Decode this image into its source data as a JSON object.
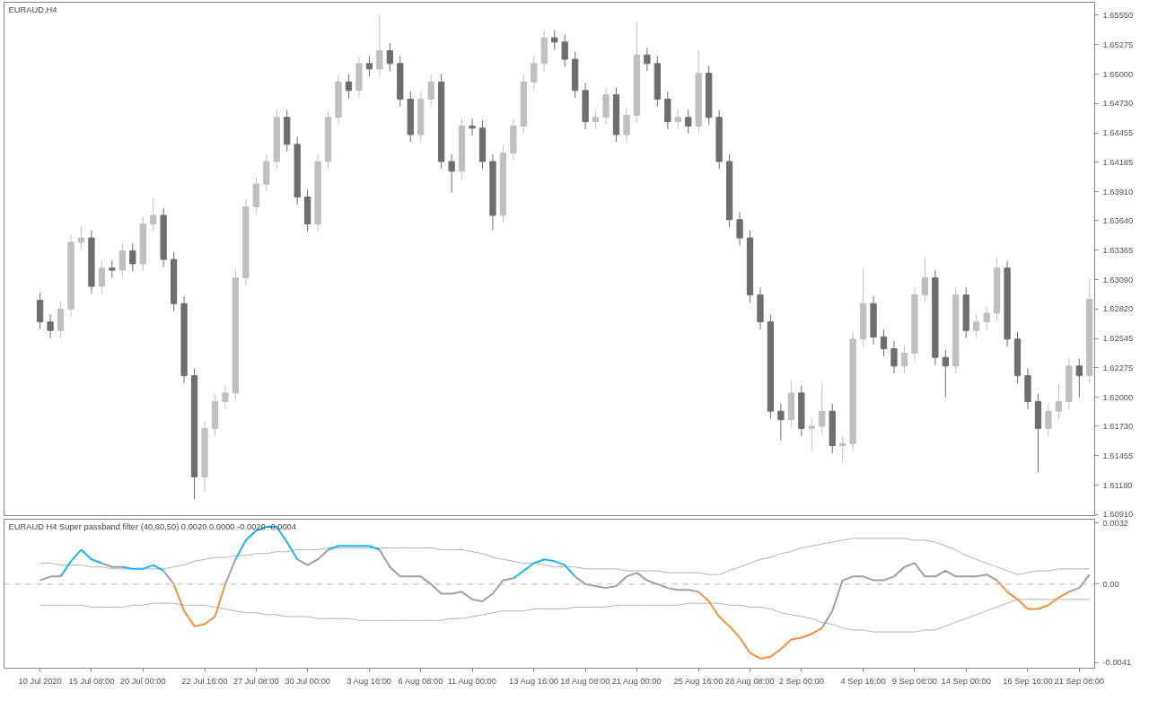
{
  "chart_data": [
    {
      "type": "candlestick",
      "title": "EURAUD,H4",
      "tick_labels": "y",
      "categories": [
        null,
        null,
        null,
        null,
        null,
        null,
        null,
        null,
        null,
        null,
        null,
        null,
        null,
        null,
        null,
        null,
        null,
        null,
        null,
        null,
        null,
        null,
        null,
        null,
        null,
        null,
        null,
        null,
        null,
        null,
        null,
        null,
        null,
        null,
        null,
        null,
        null,
        null,
        null,
        null,
        null,
        null,
        null,
        null,
        null,
        null,
        null,
        null,
        null,
        null,
        null,
        null,
        null,
        null,
        null,
        null,
        null,
        null,
        null,
        null,
        null,
        null,
        null,
        null,
        null,
        null,
        null,
        null,
        null,
        null,
        null,
        null,
        null,
        null,
        null,
        null,
        null,
        null,
        null,
        null,
        null,
        null,
        null,
        null,
        null,
        null,
        null,
        null,
        null,
        null,
        null,
        null,
        null,
        null,
        null,
        null,
        null,
        null,
        null,
        null,
        null,
        null,
        null
      ],
      "colors": [
        "#6e6e6e",
        "#6e6e6e",
        "#c0c0c0",
        "#c0c0c0",
        "#c0c0c0",
        "#6e6e6e",
        "#c0c0c0",
        "#6e6e6e",
        "#c0c0c0",
        "#6e6e6e",
        "#c0c0c0",
        "#c0c0c0",
        "#6e6e6e",
        "#6e6e6e",
        "#6e6e6e",
        "#6e6e6e",
        "#c0c0c0",
        "#c0c0c0",
        "#c0c0c0",
        "#c0c0c0",
        "#c0c0c0",
        "#c0c0c0",
        "#c0c0c0",
        "#c0c0c0",
        "#6e6e6e",
        "#6e6e6e",
        "#6e6e6e",
        "#c0c0c0",
        "#c0c0c0",
        "#c0c0c0",
        "#6e6e6e",
        "#c0c0c0",
        "#6e6e6e",
        "#c0c0c0",
        "#6e6e6e",
        "#6e6e6e",
        "#6e6e6e",
        "#c0c0c0",
        "#c0c0c0",
        "#6e6e6e",
        "#6e6e6e",
        "#c0c0c0",
        "#6e6e6e",
        "#6e6e6e",
        "#6e6e6e",
        "#c0c0c0",
        "#c0c0c0",
        "#c0c0c0",
        "#c0c0c0",
        "#c0c0c0",
        "#6e6e6e",
        "#6e6e6e",
        "#6e6e6e",
        "#6e6e6e",
        "#c0c0c0",
        "#c0c0c0",
        "#6e6e6e",
        "#c0c0c0",
        "#c0c0c0",
        "#6e6e6e",
        "#6e6e6e",
        "#6e6e6e",
        "#c0c0c0",
        "#6e6e6e",
        "#c0c0c0",
        "#6e6e6e",
        "#6e6e6e",
        "#6e6e6e",
        "#6e6e6e",
        "#6e6e6e",
        "#6e6e6e",
        "#6e6e6e",
        "#6e6e6e",
        "#c0c0c0",
        "#6e6e6e",
        "#c0c0c0",
        "#c0c0c0",
        "#6e6e6e",
        "#c0c0c0",
        "#c0c0c0",
        "#c0c0c0",
        "#6e6e6e",
        "#6e6e6e",
        "#6e6e6e",
        "#c0c0c0",
        "#c0c0c0",
        "#c0c0c0",
        "#6e6e6e",
        "#6e6e6e",
        "#c0c0c0",
        "#6e6e6e",
        "#c0c0c0",
        "#c0c0c0",
        "#c0c0c0",
        "#6e6e6e",
        "#6e6e6e",
        "#6e6e6e",
        "#6e6e6e",
        "#c0c0c0",
        "#c0c0c0",
        "#c0c0c0",
        "#6e6e6e",
        "#c0c0c0"
      ],
      "ylim": [
        1.609,
        1.6567
      ],
      "yticks": [
        {
          "value": 1.6555,
          "label": "1.65550"
        },
        {
          "value": 1.65275,
          "label": "1.65275"
        },
        {
          "value": 1.65,
          "label": "1.65000"
        },
        {
          "value": 1.6473,
          "label": "1.64730"
        },
        {
          "value": 1.64455,
          "label": "1.64455"
        },
        {
          "value": 1.64185,
          "label": "1.64185"
        },
        {
          "value": 1.6391,
          "label": "1.63910"
        },
        {
          "value": 1.6364,
          "label": "1.63640"
        },
        {
          "value": 1.63365,
          "label": "1.63365"
        },
        {
          "value": 1.6309,
          "label": "1.63090"
        },
        {
          "value": 1.6282,
          "label": "1.62820"
        },
        {
          "value": 1.62545,
          "label": "1.62545"
        },
        {
          "value": 1.62275,
          "label": "1.62275"
        },
        {
          "value": 1.62,
          "label": "1.62000"
        },
        {
          "value": 1.6173,
          "label": "1.61730"
        },
        {
          "value": 1.61455,
          "label": "1.61455"
        },
        {
          "value": 1.6118,
          "label": "1.61180"
        },
        {
          "value": 1.6091,
          "label": "1.60910"
        }
      ],
      "ohlc": [
        [
          1.629,
          1.6297,
          1.6263,
          1.627
        ],
        [
          1.627,
          1.6277,
          1.6255,
          1.6262
        ],
        [
          1.6262,
          1.6289,
          1.6255,
          1.6282
        ],
        [
          1.6282,
          1.6351,
          1.6275,
          1.6344
        ],
        [
          1.6344,
          1.6358,
          1.6337,
          1.6348
        ],
        [
          1.6348,
          1.6355,
          1.6296,
          1.6303
        ],
        [
          1.6303,
          1.6327,
          1.6296,
          1.632
        ],
        [
          1.632,
          1.6327,
          1.6311,
          1.6318
        ],
        [
          1.6318,
          1.6343,
          1.6311,
          1.6336
        ],
        [
          1.6336,
          1.6343,
          1.6317,
          1.6324
        ],
        [
          1.6324,
          1.6368,
          1.6317,
          1.6361
        ],
        [
          1.6361,
          1.6385,
          1.6354,
          1.6369
        ],
        [
          1.6369,
          1.6376,
          1.6321,
          1.6328
        ],
        [
          1.6328,
          1.6335,
          1.628,
          1.6287
        ],
        [
          1.6287,
          1.6294,
          1.6213,
          1.622
        ],
        [
          1.622,
          1.6227,
          1.6105,
          1.6126
        ],
        [
          1.6126,
          1.6178,
          1.6112,
          1.6171
        ],
        [
          1.6171,
          1.6203,
          1.6164,
          1.6196
        ],
        [
          1.6196,
          1.6211,
          1.6189,
          1.6204
        ],
        [
          1.6204,
          1.6318,
          1.6197,
          1.6311
        ],
        [
          1.6311,
          1.6384,
          1.6304,
          1.6377
        ],
        [
          1.6377,
          1.6405,
          1.637,
          1.6398
        ],
        [
          1.6398,
          1.6426,
          1.6391,
          1.6419
        ],
        [
          1.6419,
          1.6467,
          1.6412,
          1.646
        ],
        [
          1.646,
          1.6467,
          1.6428,
          1.6435
        ],
        [
          1.6435,
          1.6442,
          1.6379,
          1.6386
        ],
        [
          1.6386,
          1.6393,
          1.6354,
          1.6361
        ],
        [
          1.6361,
          1.6426,
          1.6354,
          1.6419
        ],
        [
          1.6419,
          1.6467,
          1.6412,
          1.646
        ],
        [
          1.646,
          1.65,
          1.6453,
          1.6493
        ],
        [
          1.6493,
          1.65,
          1.6478,
          1.6485
        ],
        [
          1.6485,
          1.6517,
          1.6478,
          1.651
        ],
        [
          1.651,
          1.6517,
          1.6498,
          1.6505
        ],
        [
          1.6505,
          1.6555,
          1.6498,
          1.6522
        ],
        [
          1.6522,
          1.6529,
          1.6503,
          1.651
        ],
        [
          1.651,
          1.6517,
          1.647,
          1.6477
        ],
        [
          1.6477,
          1.6484,
          1.6437,
          1.6444
        ],
        [
          1.6444,
          1.6484,
          1.6437,
          1.6477
        ],
        [
          1.6477,
          1.65,
          1.647,
          1.6493
        ],
        [
          1.6493,
          1.65,
          1.6412,
          1.6419
        ],
        [
          1.6419,
          1.6426,
          1.639,
          1.641
        ],
        [
          1.641,
          1.6459,
          1.6403,
          1.6452
        ],
        [
          1.6452,
          1.6459,
          1.6443,
          1.645
        ],
        [
          1.645,
          1.6457,
          1.6412,
          1.6419
        ],
        [
          1.6419,
          1.6426,
          1.6355,
          1.6369
        ],
        [
          1.6369,
          1.6434,
          1.6362,
          1.6427
        ],
        [
          1.6427,
          1.6459,
          1.642,
          1.6452
        ],
        [
          1.6452,
          1.65,
          1.6445,
          1.6493
        ],
        [
          1.6493,
          1.6517,
          1.6486,
          1.651
        ],
        [
          1.651,
          1.6541,
          1.6503,
          1.6534
        ],
        [
          1.6534,
          1.6541,
          1.6523,
          1.653
        ],
        [
          1.653,
          1.6537,
          1.6507,
          1.6514
        ],
        [
          1.6514,
          1.6521,
          1.6478,
          1.6485
        ],
        [
          1.6485,
          1.6492,
          1.6449,
          1.6456
        ],
        [
          1.6456,
          1.6467,
          1.6449,
          1.646
        ],
        [
          1.646,
          1.6488,
          1.6453,
          1.6481
        ],
        [
          1.6481,
          1.6488,
          1.6437,
          1.6444
        ],
        [
          1.6444,
          1.6469,
          1.6437,
          1.6462
        ],
        [
          1.6462,
          1.6548,
          1.6455,
          1.6518
        ],
        [
          1.6518,
          1.6525,
          1.6503,
          1.651
        ],
        [
          1.651,
          1.6517,
          1.647,
          1.6477
        ],
        [
          1.6477,
          1.6484,
          1.6449,
          1.6456
        ],
        [
          1.6456,
          1.6467,
          1.6449,
          1.646
        ],
        [
          1.646,
          1.6467,
          1.6445,
          1.6452
        ],
        [
          1.6452,
          1.6522,
          1.6445,
          1.6501
        ],
        [
          1.6501,
          1.6508,
          1.6453,
          1.646
        ],
        [
          1.646,
          1.6467,
          1.6412,
          1.6419
        ],
        [
          1.6419,
          1.6426,
          1.6358,
          1.6365
        ],
        [
          1.6365,
          1.6372,
          1.6341,
          1.6348
        ],
        [
          1.6348,
          1.6355,
          1.6288,
          1.6295
        ],
        [
          1.6295,
          1.6302,
          1.6263,
          1.627
        ],
        [
          1.627,
          1.6277,
          1.618,
          1.6187
        ],
        [
          1.6187,
          1.6194,
          1.616,
          1.6179
        ],
        [
          1.6179,
          1.6216,
          1.6172,
          1.6204
        ],
        [
          1.6204,
          1.6211,
          1.6164,
          1.6171
        ],
        [
          1.6171,
          1.618,
          1.615,
          1.6173
        ],
        [
          1.6173,
          1.6213,
          1.6166,
          1.6187
        ],
        [
          1.6187,
          1.6194,
          1.6148,
          1.6155
        ],
        [
          1.6155,
          1.6164,
          1.614,
          1.6157
        ],
        [
          1.6157,
          1.6261,
          1.615,
          1.6254
        ],
        [
          1.6254,
          1.632,
          1.6247,
          1.6287
        ],
        [
          1.6287,
          1.6294,
          1.6249,
          1.6256
        ],
        [
          1.6256,
          1.6263,
          1.6238,
          1.6245
        ],
        [
          1.6245,
          1.6252,
          1.6222,
          1.6229
        ],
        [
          1.6229,
          1.6248,
          1.6222,
          1.6241
        ],
        [
          1.6241,
          1.6302,
          1.6234,
          1.6295
        ],
        [
          1.6295,
          1.633,
          1.6288,
          1.6311
        ],
        [
          1.6311,
          1.6318,
          1.623,
          1.6237
        ],
        [
          1.6237,
          1.6244,
          1.62,
          1.6229
        ],
        [
          1.6229,
          1.6302,
          1.6222,
          1.6295
        ],
        [
          1.6295,
          1.6302,
          1.6255,
          1.6262
        ],
        [
          1.6262,
          1.6277,
          1.6255,
          1.627
        ],
        [
          1.627,
          1.6285,
          1.6263,
          1.6278
        ],
        [
          1.6278,
          1.633,
          1.6271,
          1.632
        ],
        [
          1.632,
          1.6327,
          1.6247,
          1.6254
        ],
        [
          1.6254,
          1.6261,
          1.6213,
          1.622
        ],
        [
          1.622,
          1.6227,
          1.6189,
          1.6196
        ],
        [
          1.6196,
          1.6203,
          1.613,
          1.6171
        ],
        [
          1.6171,
          1.6194,
          1.6164,
          1.6187
        ],
        [
          1.6187,
          1.6213,
          1.618,
          1.6196
        ],
        [
          1.6196,
          1.6236,
          1.6189,
          1.6229
        ],
        [
          1.6229,
          1.6236,
          1.62,
          1.622
        ],
        [
          1.622,
          1.631,
          1.6213,
          1.6291
        ]
      ]
    },
    {
      "type": "line",
      "title": "EURAUD H4  Super passband filter (40,60,50) 0.0020 0.0000 -0.0020 -0.0004",
      "categories": [
        "10 Jul 2020",
        null,
        null,
        null,
        null,
        "15 Jul 08:00",
        null,
        null,
        null,
        null,
        "20 Jul 00:00",
        null,
        null,
        null,
        null,
        null,
        "22 Jul 16:00",
        null,
        null,
        null,
        null,
        "27 Jul 08:00",
        null,
        null,
        null,
        null,
        "30 Jul 00:00",
        null,
        null,
        null,
        null,
        null,
        "3 Aug 16:00",
        null,
        null,
        null,
        null,
        "6 Aug 08:00",
        null,
        null,
        null,
        null,
        "11 Aug 00:00",
        null,
        null,
        null,
        null,
        null,
        "13 Aug 16:00",
        null,
        null,
        null,
        null,
        "18 Aug 08:00",
        null,
        null,
        null,
        null,
        "21 Aug 00:00",
        null,
        null,
        null,
        null,
        null,
        "25 Aug 16:00",
        null,
        null,
        null,
        null,
        "28 Aug 08:00",
        null,
        null,
        null,
        null,
        "2 Sep 00:00",
        null,
        null,
        null,
        null,
        null,
        "4 Sep 16:00",
        null,
        null,
        null,
        null,
        "9 Sep 08:00",
        null,
        null,
        null,
        null,
        "14 Sep 00:00",
        null,
        null,
        null,
        null,
        null,
        "16 Sep 16:00",
        null,
        null,
        null,
        null,
        "21 Sep 08:00",
        null
      ],
      "ylim": [
        -0.0044,
        0.0034
      ],
      "yticks": [
        0.0032,
        {
          "value": 0,
          "label": "0.00"
        },
        -0.0041
      ],
      "ref_lines": [
        {
          "axis": "y",
          "value": 0,
          "color": "#b4b4b4",
          "line_style": "dashed"
        }
      ],
      "series": [
        {
          "color": "#b4b4b4",
          "values": [
            0.0011,
            0.0011,
            0.001,
            0.001,
            0.001,
            0.0009,
            0.0009,
            0.0008,
            0.0008,
            0.0008,
            0.0008,
            0.0008,
            0.0008,
            0.0009,
            0.001,
            0.0012,
            0.0013,
            0.0014,
            0.0014,
            0.0015,
            0.0015,
            0.0016,
            0.0016,
            0.0017,
            0.0017,
            0.0018,
            0.0018,
            0.0018,
            0.0019,
            0.0019,
            0.0019,
            0.0019,
            0.0019,
            0.0019,
            0.0019,
            0.0019,
            0.0019,
            0.0019,
            0.0019,
            0.0018,
            0.0018,
            0.0018,
            0.0017,
            0.0016,
            0.0014,
            0.0013,
            0.0012,
            0.0011,
            0.0011,
            0.001,
            0.0009,
            0.0009,
            0.0009,
            0.0008,
            0.0008,
            0.0008,
            0.0008,
            0.0007,
            0.0007,
            0.0007,
            0.0007,
            0.0006,
            0.0006,
            0.0006,
            0.0006,
            0.0005,
            0.0005,
            0.0007,
            0.0009,
            0.0011,
            0.0013,
            0.0014,
            0.0016,
            0.0017,
            0.0019,
            0.002,
            0.0021,
            0.0022,
            0.0023,
            0.0024,
            0.0024,
            0.0024,
            0.0024,
            0.0024,
            0.0024,
            0.0023,
            0.0023,
            0.0022,
            0.002,
            0.0018,
            0.0015,
            0.0013,
            0.0011,
            0.0009,
            0.0007,
            0.0005,
            0.0006,
            0.0007,
            0.0007,
            0.0008,
            0.0008,
            0.0008,
            0.0008
          ]
        },
        {
          "color": "#b4b4b4",
          "values": [
            -0.0011,
            -0.0011,
            -0.0011,
            -0.0011,
            -0.0011,
            -0.0012,
            -0.0012,
            -0.0012,
            -0.0012,
            -0.0011,
            -0.0011,
            -0.001,
            -0.001,
            -0.001,
            -0.0011,
            -0.0011,
            -0.0011,
            -0.0012,
            -0.0013,
            -0.0014,
            -0.0015,
            -0.0015,
            -0.0016,
            -0.0016,
            -0.0017,
            -0.0017,
            -0.0017,
            -0.0018,
            -0.0018,
            -0.0018,
            -0.0018,
            -0.0019,
            -0.0019,
            -0.0019,
            -0.0019,
            -0.0019,
            -0.0019,
            -0.0019,
            -0.0019,
            -0.0019,
            -0.0018,
            -0.0018,
            -0.0017,
            -0.0016,
            -0.0015,
            -0.0014,
            -0.0014,
            -0.0014,
            -0.0013,
            -0.0013,
            -0.0013,
            -0.0013,
            -0.0012,
            -0.0012,
            -0.0012,
            -0.0012,
            -0.0011,
            -0.0011,
            -0.0011,
            -0.0011,
            -0.0011,
            -0.0011,
            -0.0011,
            -0.001,
            -0.001,
            -0.001,
            -0.001,
            -0.0011,
            -0.0011,
            -0.0012,
            -0.0012,
            -0.0013,
            -0.0015,
            -0.0016,
            -0.0017,
            -0.0018,
            -0.002,
            -0.0021,
            -0.0023,
            -0.0024,
            -0.0024,
            -0.0025,
            -0.0025,
            -0.0025,
            -0.0025,
            -0.0025,
            -0.0024,
            -0.0024,
            -0.0022,
            -0.002,
            -0.0018,
            -0.0016,
            -0.0014,
            -0.0012,
            -0.001,
            -0.0008,
            -0.0008,
            -0.0008,
            -0.0008,
            -0.0008,
            -0.0008,
            -0.0008,
            -0.0008
          ]
        },
        {
          "color": "#a0a0a0",
          "values": [
            0.0002,
            0.0004,
            0.0004,
            null,
            null,
            null,
            0.0011,
            0.0009,
            0.0009,
            null,
            null,
            null,
            0.0007,
            0,
            null,
            null,
            null,
            null,
            0,
            0.0013,
            null,
            null,
            null,
            null,
            null,
            0.0013,
            0.001,
            0.0013,
            0.0018,
            null,
            null,
            null,
            null,
            0.0018,
            0.0009,
            0.0004,
            0.0004,
            0.0004,
            0,
            -0.0005,
            -0.0005,
            -0.0004,
            -0.0008,
            -0.0009,
            -0.0005,
            0.0002,
            0.0003,
            null,
            null,
            null,
            null,
            null,
            0.0004,
            0,
            -0.0001,
            -0.0002,
            -0.0001,
            0.0004,
            0.0006,
            0.0002,
            0,
            -0.0002,
            -0.0003,
            -0.0003,
            -0.0004,
            null,
            null,
            null,
            null,
            null,
            null,
            null,
            null,
            null,
            null,
            null,
            -0.0023,
            -0.0014,
            0.0002,
            0.0004,
            0.0004,
            0.0002,
            0.0002,
            0.0004,
            0.0009,
            0.0011,
            0.0004,
            0.0004,
            0.0007,
            0.0004,
            0.0004,
            0.0004,
            0.0005,
            0.0002,
            null,
            null,
            null,
            null,
            null,
            null,
            -0.0004,
            -0.0002,
            0.0005
          ]
        },
        {
          "color": "#1eb4f0",
          "values": [
            null,
            null,
            0.0004,
            0.0012,
            0.0018,
            0.0013,
            0.0011,
            null,
            0.0009,
            0.0008,
            0.0008,
            0.001,
            0.0007,
            null,
            null,
            null,
            null,
            null,
            null,
            0.0013,
            0.0023,
            0.0028,
            0.003,
            0.003,
            0.0022,
            0.0013,
            null,
            null,
            0.0018,
            0.002,
            0.002,
            0.002,
            0.002,
            0.0018,
            null,
            null,
            null,
            null,
            null,
            null,
            null,
            null,
            null,
            null,
            null,
            null,
            0.0003,
            0.0007,
            0.0011,
            0.0013,
            0.0012,
            0.001,
            0.0004,
            null,
            null,
            null,
            null,
            null,
            null,
            null,
            null,
            null,
            null,
            null,
            null,
            null,
            null,
            null,
            null,
            null,
            null,
            null,
            null,
            null,
            null,
            null,
            null,
            null,
            null,
            null,
            null,
            null,
            null,
            null,
            null,
            null,
            null,
            null,
            null,
            null,
            null,
            null,
            null,
            null,
            null,
            null,
            null,
            null,
            null,
            null,
            null,
            null,
            null
          ]
        },
        {
          "color": "#f5913c",
          "values": [
            null,
            null,
            null,
            null,
            null,
            null,
            null,
            null,
            null,
            null,
            null,
            null,
            null,
            0,
            -0.0014,
            -0.0022,
            -0.0021,
            -0.0017,
            0,
            null,
            null,
            null,
            null,
            null,
            null,
            null,
            null,
            null,
            null,
            null,
            null,
            null,
            null,
            null,
            null,
            null,
            null,
            null,
            null,
            null,
            null,
            null,
            null,
            null,
            null,
            null,
            null,
            null,
            null,
            null,
            null,
            null,
            null,
            null,
            null,
            null,
            null,
            null,
            null,
            null,
            null,
            null,
            null,
            null,
            -0.0004,
            -0.0009,
            -0.0017,
            -0.0022,
            -0.0028,
            -0.0036,
            -0.0039,
            -0.0038,
            -0.0034,
            -0.0029,
            -0.0028,
            -0.0026,
            -0.0023,
            null,
            null,
            null,
            null,
            null,
            null,
            null,
            null,
            null,
            null,
            null,
            null,
            null,
            null,
            null,
            null,
            0.0002,
            -0.0004,
            -0.0008,
            -0.0013,
            -0.0013,
            -0.0011,
            -0.0007,
            -0.0004,
            null,
            null
          ]
        }
      ]
    }
  ]
}
